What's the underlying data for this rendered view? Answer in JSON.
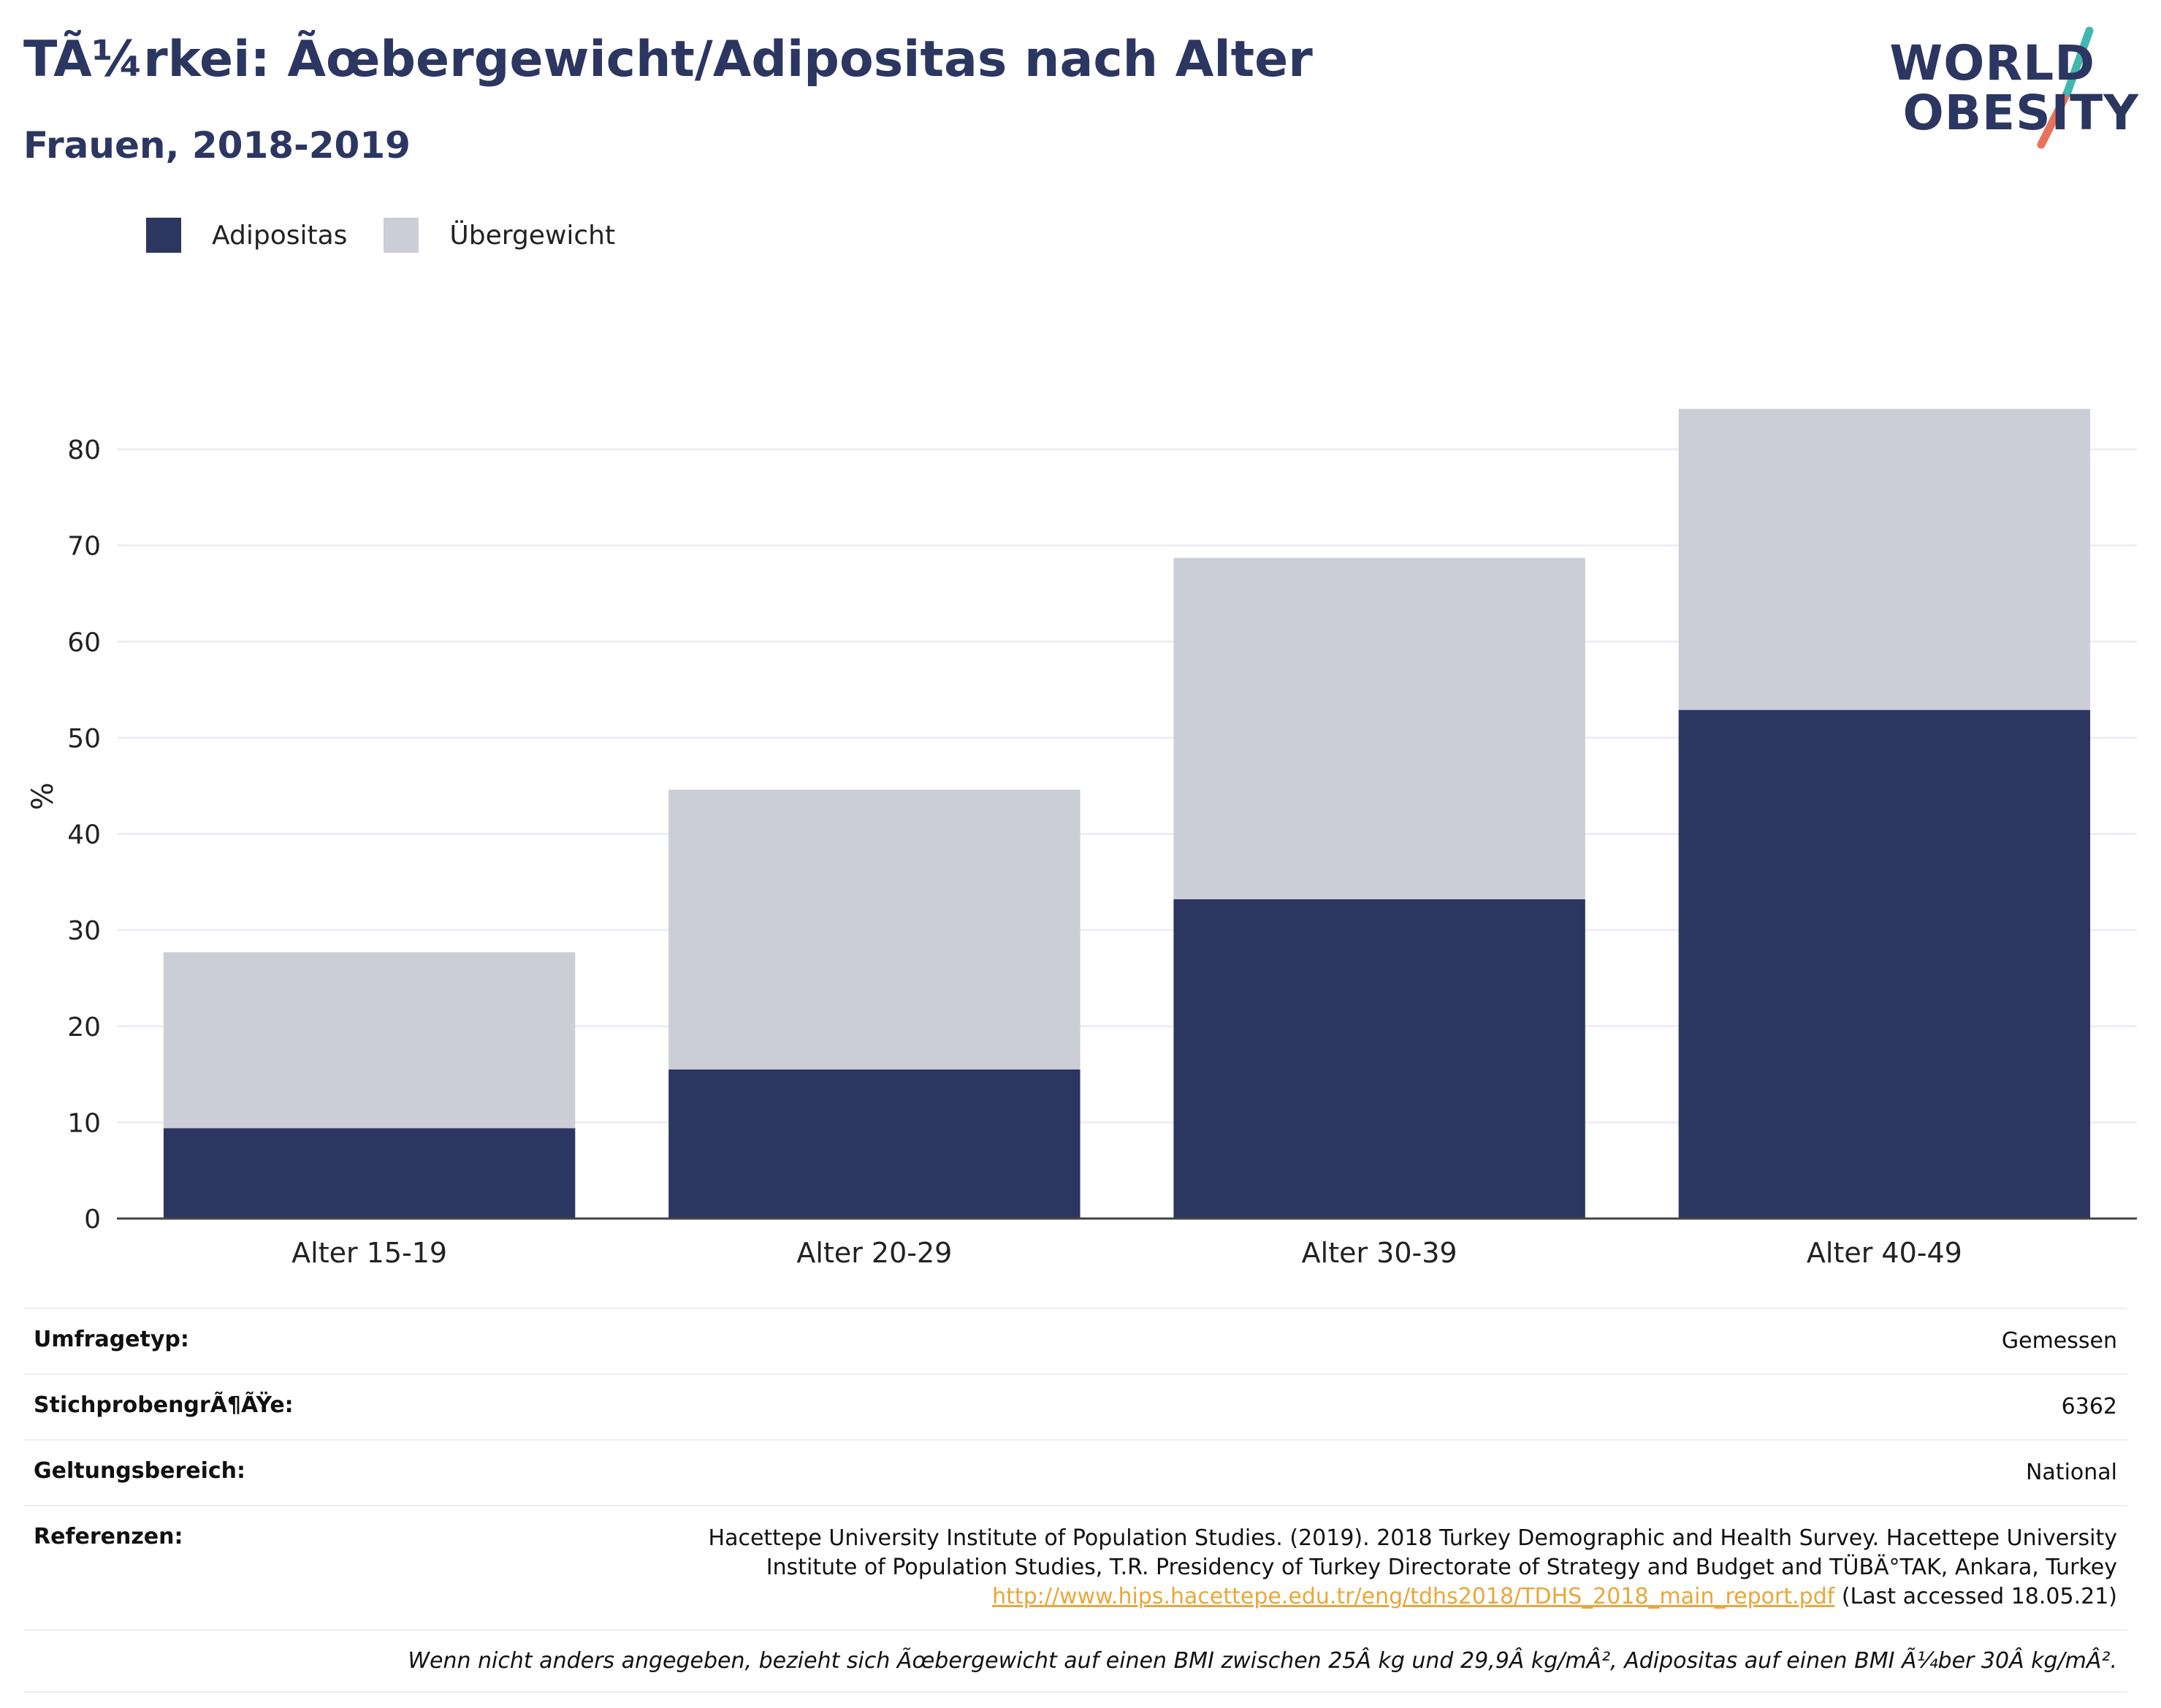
{
  "title": "TÃ¼rkei: Ãœbergewicht/Adipositas nach Alter",
  "subtitle": "Frauen, 2018-2019",
  "logo": {
    "line1": "WORLD",
    "line2": "OBESITY"
  },
  "colors": {
    "adipositas": "#2b3661",
    "uebergewicht": "#cbcdd7",
    "grid": "#eceef5",
    "axis": "#444444",
    "accent_teal": "#3fb8b0",
    "accent_red": "#e8735a"
  },
  "chart_data": {
    "type": "bar",
    "stacked": true,
    "categories": [
      "Alter 15-19",
      "Alter 20-29",
      "Alter 30-39",
      "Alter 40-49"
    ],
    "series": [
      {
        "name": "Adipositas",
        "values": [
          9.4,
          15.5,
          33.2,
          52.9
        ]
      },
      {
        "name": "Übergewicht",
        "values": [
          18.3,
          29.1,
          35.5,
          31.3
        ]
      }
    ],
    "ylabel": "%",
    "ylim": [
      0,
      85
    ],
    "yticks": [
      0,
      10,
      20,
      30,
      40,
      50,
      60,
      70,
      80
    ],
    "grid": true,
    "legend_position": "top-left"
  },
  "info": {
    "umfragetyp": {
      "label": "Umfragetyp:",
      "value": "Gemessen"
    },
    "stichprobe": {
      "label": "StichprobengrÃ¶ÃŸe:",
      "value": "6362"
    },
    "geltung": {
      "label": "Geltungsbereich:",
      "value": "National"
    },
    "referenzen": {
      "label": "Referenzen:",
      "text1": "Hacettepe University Institute of Population Studies. (2019). 2018 Turkey Demographic and Health Survey. Hacettepe University",
      "text2": "Institute of Population Studies, T.R. Presidency of Turkey Directorate of Strategy and Budget and TÜBÄ°TAK, Ankara, Turkey",
      "link": "http://www.hips.hacettepe.edu.tr/eng/tdhs2018/TDHS_2018_main_report.pdf",
      "accessed": " (Last accessed 18.05.21)"
    },
    "note": "Wenn nicht anders angegeben, bezieht sich Ãœbergewicht auf einen BMI zwischen 25Â kg und 29,9Â kg/mÂ², Adipositas auf einen BMI Ã¼ber 30Â kg/mÂ²."
  }
}
